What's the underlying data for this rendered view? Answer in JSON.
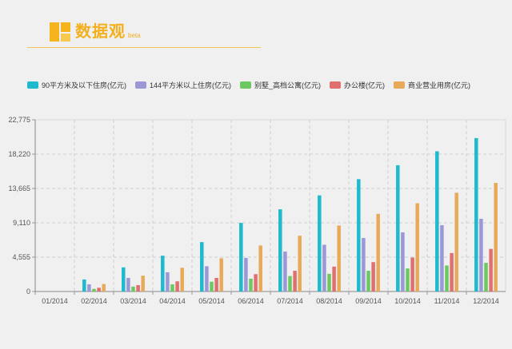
{
  "logo": {
    "text": "数据观",
    "beta": "beta"
  },
  "chart_data": {
    "type": "bar",
    "categories": [
      "01/2014",
      "02/2014",
      "03/2014",
      "04/2014",
      "05/2014",
      "06/2014",
      "07/2014",
      "08/2014",
      "09/2014",
      "10/2014",
      "11/2014",
      "12/2014"
    ],
    "series": [
      {
        "name": "90平方米及以下住房(亿元)",
        "color": "#1fbacd",
        "values": [
          0,
          1600,
          3200,
          4750,
          6550,
          9100,
          10900,
          12750,
          14900,
          16750,
          18600,
          20350
        ]
      },
      {
        "name": "144平方米以上住房(亿元)",
        "color": "#9b98d8",
        "values": [
          0,
          950,
          1800,
          2550,
          3350,
          4450,
          5300,
          6200,
          7100,
          7850,
          8800,
          9650
        ]
      },
      {
        "name": "别墅_高档公寓(亿元)",
        "color": "#6cc860",
        "values": [
          0,
          350,
          650,
          950,
          1300,
          1700,
          2050,
          2350,
          2750,
          3050,
          3450,
          3800
        ]
      },
      {
        "name": "办公楼(亿元)",
        "color": "#e07070",
        "values": [
          0,
          500,
          850,
          1350,
          1800,
          2300,
          2750,
          3300,
          3900,
          4500,
          5100,
          5650
        ]
      },
      {
        "name": "商业营业用房(亿元)",
        "color": "#e8aa5a",
        "values": [
          0,
          1000,
          2100,
          3150,
          4400,
          6100,
          7400,
          8750,
          10300,
          11700,
          13100,
          14400
        ]
      }
    ],
    "yticks": [
      "0",
      "4,555",
      "9,110",
      "13,665",
      "18,220",
      "22,775"
    ],
    "ylim": [
      0,
      22775
    ],
    "grid": true,
    "legend": "top-left"
  }
}
